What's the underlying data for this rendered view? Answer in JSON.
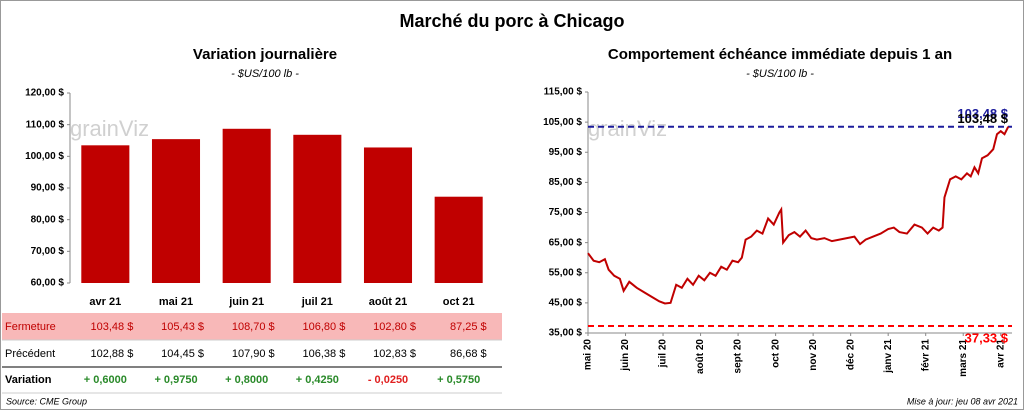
{
  "title": "Marché du porc à Chicago",
  "source": "Source: CME Group",
  "updated": "Mise à jour: jeu 08 avr 2021",
  "watermark": "grainViz",
  "chart_data": [
    {
      "type": "bar",
      "title": "Variation journalière",
      "subtitle": "- $US/100 lb -",
      "categories": [
        "avr 21",
        "mai 21",
        "juin 21",
        "juil 21",
        "août 21",
        "oct 21"
      ],
      "values": [
        103.48,
        105.43,
        108.7,
        106.8,
        102.8,
        87.25
      ],
      "value_labels": [
        "103,48  $",
        "105,43  $",
        "108,70  $",
        "106,80  $",
        "102,80  $",
        "87,25  $"
      ],
      "color": "#c00000",
      "ylim": [
        60,
        120
      ],
      "yticks": [
        {
          "value": 60,
          "label": "60,00 $"
        },
        {
          "value": 70,
          "label": "70,00 $"
        },
        {
          "value": 80,
          "label": "80,00 $"
        },
        {
          "value": 90,
          "label": "90,00 $"
        },
        {
          "value": 100,
          "label": "100,00 $"
        },
        {
          "value": 110,
          "label": "110,00 $"
        },
        {
          "value": 120,
          "label": "120,00 $"
        }
      ]
    },
    {
      "type": "line",
      "title": "Comportement échéance immédiate depuis 1 an",
      "subtitle": "- $US/100 lb -",
      "color": "#c00000",
      "x": [
        0,
        0.15,
        0.3,
        0.45,
        0.55,
        0.7,
        0.85,
        0.95,
        1.1,
        1.3,
        1.5,
        1.7,
        1.9,
        2.05,
        2.2,
        2.35,
        2.5,
        2.65,
        2.8,
        2.95,
        3.1,
        3.25,
        3.4,
        3.55,
        3.7,
        3.85,
        4.0,
        4.1,
        4.2,
        4.35,
        4.5,
        4.65,
        4.8,
        4.95,
        5.1,
        5.15,
        5.2,
        5.35,
        5.5,
        5.65,
        5.8,
        5.95,
        6.1,
        6.3,
        6.5,
        6.7,
        6.9,
        7.1,
        7.25,
        7.4,
        7.6,
        7.8,
        8.0,
        8.15,
        8.3,
        8.5,
        8.7,
        8.9,
        9.05,
        9.2,
        9.35,
        9.45,
        9.5,
        9.65,
        9.8,
        9.95,
        10.1,
        10.2,
        10.3,
        10.4,
        10.5,
        10.65,
        10.8,
        10.9,
        11.0,
        11.1,
        11.2
      ],
      "values": [
        61.5,
        59,
        58.5,
        59.5,
        56,
        54,
        53,
        49,
        52,
        50,
        48.5,
        47,
        45.5,
        44.8,
        45,
        51,
        50,
        53,
        51,
        54,
        52.5,
        55,
        54,
        57,
        56,
        59,
        58.5,
        60,
        66,
        67,
        69,
        68,
        73,
        71,
        75,
        76,
        65,
        67.5,
        68.5,
        67,
        69,
        66.5,
        66,
        66.5,
        65.5,
        66,
        66.5,
        67,
        64.5,
        66,
        67,
        68,
        69.5,
        70,
        68.5,
        68,
        71,
        70,
        68,
        70,
        69,
        70,
        80,
        86,
        87,
        86,
        88,
        87,
        90,
        88,
        93,
        94,
        96,
        101,
        102,
        101,
        103.48
      ],
      "last_label": "103,48 $",
      "xlim": [
        0,
        11.3
      ],
      "xticks": [
        {
          "value": 0,
          "label": "mai 20"
        },
        {
          "value": 1,
          "label": "juin 20"
        },
        {
          "value": 2,
          "label": "juil 20"
        },
        {
          "value": 3,
          "label": "août 20"
        },
        {
          "value": 4,
          "label": "sept 20"
        },
        {
          "value": 5,
          "label": "oct 20"
        },
        {
          "value": 6,
          "label": "nov 20"
        },
        {
          "value": 7,
          "label": "déc 20"
        },
        {
          "value": 8,
          "label": "janv 21"
        },
        {
          "value": 9,
          "label": "févr 21"
        },
        {
          "value": 10,
          "label": "mars 21"
        },
        {
          "value": 11,
          "label": "avr 21"
        }
      ],
      "ylim": [
        35,
        115
      ],
      "yticks": [
        {
          "value": 35,
          "label": "35,00 $"
        },
        {
          "value": 45,
          "label": "45,00 $"
        },
        {
          "value": 55,
          "label": "55,00 $"
        },
        {
          "value": 65,
          "label": "65,00 $"
        },
        {
          "value": 75,
          "label": "75,00 $"
        },
        {
          "value": 85,
          "label": "85,00 $"
        },
        {
          "value": 95,
          "label": "95,00 $"
        },
        {
          "value": 105,
          "label": "105,00 $"
        },
        {
          "value": 115,
          "label": "115,00 $"
        }
      ],
      "reference_lines": [
        {
          "value": 103.48,
          "label": "103,48 $",
          "color": "#1c1c9c"
        },
        {
          "value": 37.33,
          "label": "37,33 $",
          "color": "#ff0000"
        }
      ]
    }
  ],
  "table": {
    "rows": [
      {
        "label": "Fermeture"
      },
      {
        "label": "Précédent",
        "cells": [
          "102,88  $",
          "104,45  $",
          "107,90  $",
          "106,38  $",
          "102,83  $",
          "86,68  $"
        ]
      },
      {
        "label": "Variation",
        "cells": [
          "+ 0,6000",
          "+ 0,9750",
          "+ 0,8000",
          "+ 0,4250",
          "- 0,0250",
          "+ 0,5750"
        ],
        "colors": [
          "#2a8a2a",
          "#2a8a2a",
          "#2a8a2a",
          "#2a8a2a",
          "#e02020",
          "#2a8a2a"
        ]
      }
    ]
  }
}
